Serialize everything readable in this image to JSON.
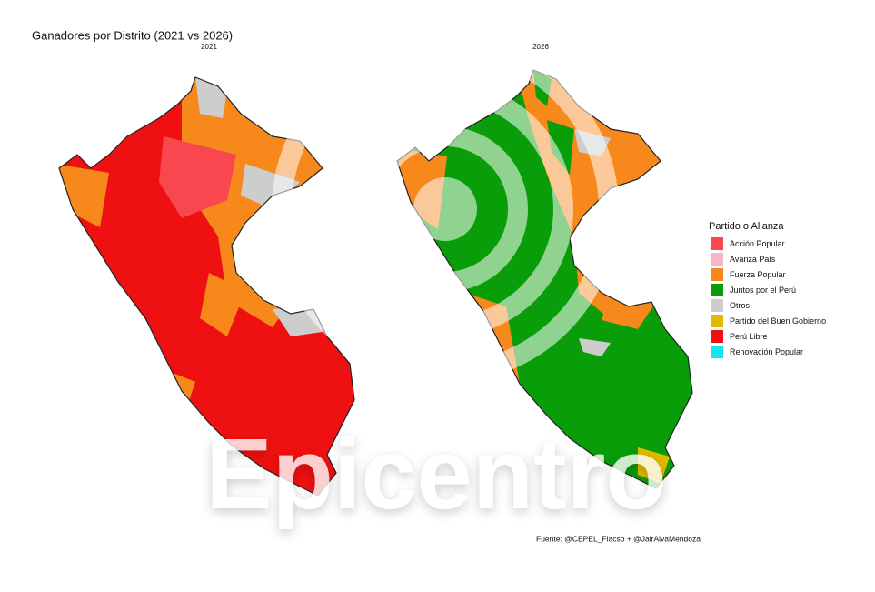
{
  "title": "Ganadores por Distrito (2021 vs 2026)",
  "panels": [
    {
      "label": "2021"
    },
    {
      "label": "2026"
    }
  ],
  "legend": {
    "title": "Partido o Alianza",
    "items": [
      {
        "name": "Acción Popular",
        "color": "#f8474f"
      },
      {
        "name": "Avanza País",
        "color": "#f7b6c8"
      },
      {
        "name": "Fuerza Popular",
        "color": "#f7891c"
      },
      {
        "name": "Juntos por el Perú",
        "color": "#0a9d0a"
      },
      {
        "name": "Otros",
        "color": "#cdcdcd"
      },
      {
        "name": "Partido del Buen Gobierno",
        "color": "#e4b800"
      },
      {
        "name": "Perú Libre",
        "color": "#ef1111"
      },
      {
        "name": "Renovación Popular",
        "color": "#13e6ef"
      }
    ]
  },
  "source": "Fuente: @CEPEL_Flacso + @JairAlvaMendoza",
  "watermark": "Epicentro"
}
